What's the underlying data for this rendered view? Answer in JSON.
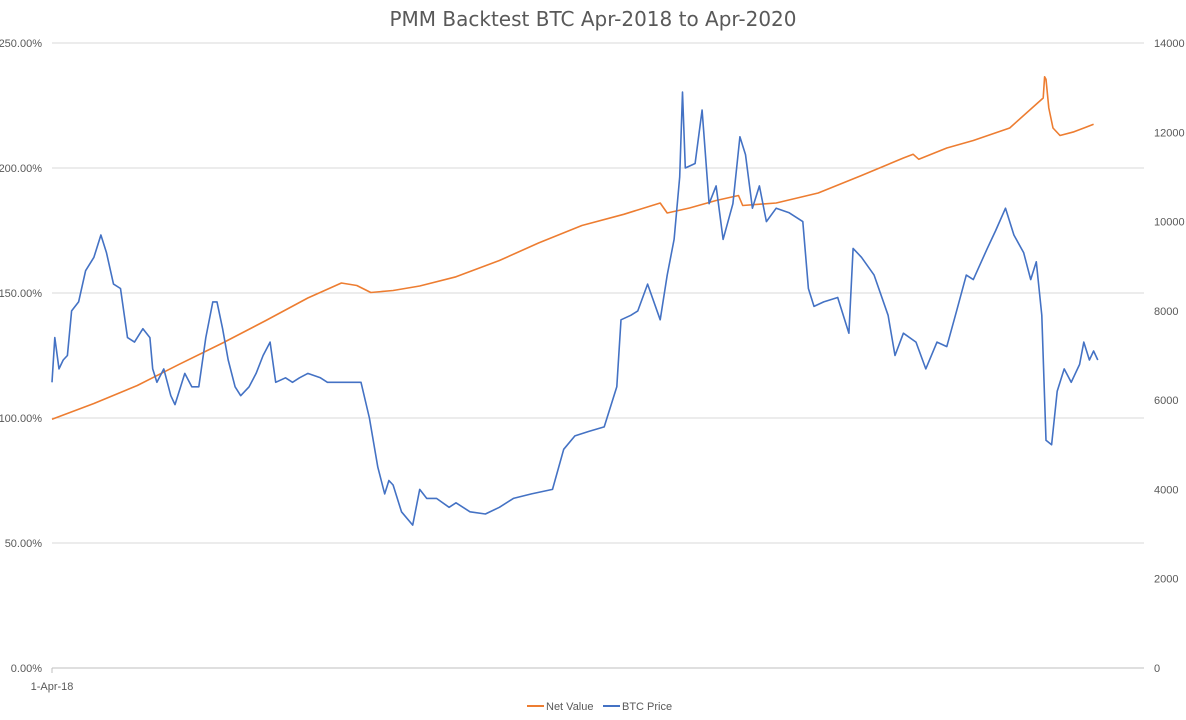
{
  "chart_data": {
    "type": "line",
    "title": "PMM Backtest BTC Apr-2018 to Apr-2020",
    "x_tick_labels": [
      "1-Apr-18"
    ],
    "x_range": [
      "2018-04-01",
      "2020-04-01"
    ],
    "y_left": {
      "ticks": [
        "0.00%",
        "50.00%",
        "100.00%",
        "150.00%",
        "200.00%",
        "250.00%"
      ],
      "range": [
        0,
        250
      ]
    },
    "y_right": {
      "ticks": [
        "0",
        "2000",
        "4000",
        "6000",
        "8000",
        "10000",
        "12000",
        "14000"
      ],
      "range": [
        0,
        14000
      ]
    },
    "grid": true,
    "legend_position": "bottom",
    "series": [
      {
        "name": "Net Value",
        "axis": "left",
        "color": "#ED7D31",
        "points": [
          [
            "2018-04-01",
            99.5
          ],
          [
            "2018-05-01",
            105.8
          ],
          [
            "2018-06-01",
            113.0
          ],
          [
            "2018-07-01",
            121.5
          ],
          [
            "2018-08-01",
            130.0
          ],
          [
            "2018-09-01",
            139.0
          ],
          [
            "2018-10-01",
            148.0
          ],
          [
            "2018-10-25",
            154.0
          ],
          [
            "2018-11-05",
            153.0
          ],
          [
            "2018-11-15",
            150.2
          ],
          [
            "2018-12-01",
            151.0
          ],
          [
            "2018-12-20",
            152.8
          ],
          [
            "2019-01-15",
            156.5
          ],
          [
            "2019-02-15",
            163.0
          ],
          [
            "2019-03-15",
            170.0
          ],
          [
            "2019-04-15",
            177.0
          ],
          [
            "2019-05-15",
            181.5
          ],
          [
            "2019-06-10",
            186.0
          ],
          [
            "2019-06-15",
            182.0
          ],
          [
            "2019-07-01",
            184.0
          ],
          [
            "2019-07-20",
            187.0
          ],
          [
            "2019-08-05",
            189.0
          ],
          [
            "2019-08-08",
            185.0
          ],
          [
            "2019-09-01",
            186.0
          ],
          [
            "2019-10-01",
            190.0
          ],
          [
            "2019-11-01",
            197.0
          ],
          [
            "2019-12-01",
            204.0
          ],
          [
            "2019-12-08",
            205.5
          ],
          [
            "2019-12-12",
            203.5
          ],
          [
            "2020-01-01",
            208.0
          ],
          [
            "2020-01-20",
            211.0
          ],
          [
            "2020-02-15",
            216.0
          ],
          [
            "2020-03-10",
            228.0
          ],
          [
            "2020-03-11",
            236.5
          ],
          [
            "2020-03-12",
            235.5
          ],
          [
            "2020-03-14",
            224.0
          ],
          [
            "2020-03-17",
            216.0
          ],
          [
            "2020-03-22",
            213.0
          ],
          [
            "2020-04-01",
            214.5
          ],
          [
            "2020-04-15",
            217.5
          ]
        ]
      },
      {
        "name": "BTC Price",
        "axis": "right",
        "color": "#4472C4",
        "points": [
          [
            "2018-04-01",
            6400
          ],
          [
            "2018-04-03",
            7400
          ],
          [
            "2018-04-06",
            6700
          ],
          [
            "2018-04-09",
            6900
          ],
          [
            "2018-04-12",
            7000
          ],
          [
            "2018-04-15",
            8000
          ],
          [
            "2018-04-20",
            8200
          ],
          [
            "2018-04-25",
            8900
          ],
          [
            "2018-05-01",
            9200
          ],
          [
            "2018-05-06",
            9700
          ],
          [
            "2018-05-10",
            9300
          ],
          [
            "2018-05-15",
            8600
          ],
          [
            "2018-05-20",
            8500
          ],
          [
            "2018-05-25",
            7400
          ],
          [
            "2018-05-30",
            7300
          ],
          [
            "2018-06-05",
            7600
          ],
          [
            "2018-06-10",
            7400
          ],
          [
            "2018-06-12",
            6700
          ],
          [
            "2018-06-15",
            6400
          ],
          [
            "2018-06-20",
            6700
          ],
          [
            "2018-06-25",
            6100
          ],
          [
            "2018-06-28",
            5900
          ],
          [
            "2018-07-05",
            6600
          ],
          [
            "2018-07-10",
            6300
          ],
          [
            "2018-07-15",
            6300
          ],
          [
            "2018-07-20",
            7400
          ],
          [
            "2018-07-25",
            8200
          ],
          [
            "2018-07-28",
            8200
          ],
          [
            "2018-08-01",
            7600
          ],
          [
            "2018-08-05",
            6900
          ],
          [
            "2018-08-10",
            6300
          ],
          [
            "2018-08-14",
            6100
          ],
          [
            "2018-08-20",
            6300
          ],
          [
            "2018-08-25",
            6600
          ],
          [
            "2018-08-30",
            7000
          ],
          [
            "2018-09-04",
            7300
          ],
          [
            "2018-09-08",
            6400
          ],
          [
            "2018-09-15",
            6500
          ],
          [
            "2018-09-20",
            6400
          ],
          [
            "2018-09-25",
            6500
          ],
          [
            "2018-10-01",
            6600
          ],
          [
            "2018-10-10",
            6500
          ],
          [
            "2018-10-15",
            6400
          ],
          [
            "2018-10-20",
            6400
          ],
          [
            "2018-10-25",
            6400
          ],
          [
            "2018-11-01",
            6400
          ],
          [
            "2018-11-08",
            6400
          ],
          [
            "2018-11-14",
            5600
          ],
          [
            "2018-11-20",
            4500
          ],
          [
            "2018-11-25",
            3900
          ],
          [
            "2018-11-28",
            4200
          ],
          [
            "2018-12-01",
            4100
          ],
          [
            "2018-12-07",
            3500
          ],
          [
            "2018-12-15",
            3200
          ],
          [
            "2018-12-20",
            4000
          ],
          [
            "2018-12-25",
            3800
          ],
          [
            "2019-01-01",
            3800
          ],
          [
            "2019-01-10",
            3600
          ],
          [
            "2019-01-15",
            3700
          ],
          [
            "2019-01-25",
            3500
          ],
          [
            "2019-02-05",
            3450
          ],
          [
            "2019-02-15",
            3600
          ],
          [
            "2019-02-25",
            3800
          ],
          [
            "2019-03-10",
            3900
          ],
          [
            "2019-03-25",
            4000
          ],
          [
            "2019-04-02",
            4900
          ],
          [
            "2019-04-10",
            5200
          ],
          [
            "2019-04-20",
            5300
          ],
          [
            "2019-05-01",
            5400
          ],
          [
            "2019-05-10",
            6300
          ],
          [
            "2019-05-13",
            7800
          ],
          [
            "2019-05-20",
            7900
          ],
          [
            "2019-05-25",
            8000
          ],
          [
            "2019-06-01",
            8600
          ],
          [
            "2019-06-10",
            7800
          ],
          [
            "2019-06-15",
            8800
          ],
          [
            "2019-06-20",
            9600
          ],
          [
            "2019-06-24",
            11000
          ],
          [
            "2019-06-26",
            12900
          ],
          [
            "2019-06-28",
            11200
          ],
          [
            "2019-07-05",
            11300
          ],
          [
            "2019-07-10",
            12500
          ],
          [
            "2019-07-15",
            10400
          ],
          [
            "2019-07-20",
            10800
          ],
          [
            "2019-07-25",
            9600
          ],
          [
            "2019-08-01",
            10400
          ],
          [
            "2019-08-06",
            11900
          ],
          [
            "2019-08-10",
            11500
          ],
          [
            "2019-08-15",
            10300
          ],
          [
            "2019-08-20",
            10800
          ],
          [
            "2019-08-25",
            10000
          ],
          [
            "2019-09-01",
            10300
          ],
          [
            "2019-09-10",
            10200
          ],
          [
            "2019-09-20",
            10000
          ],
          [
            "2019-09-24",
            8500
          ],
          [
            "2019-09-28",
            8100
          ],
          [
            "2019-10-05",
            8200
          ],
          [
            "2019-10-15",
            8300
          ],
          [
            "2019-10-23",
            7500
          ],
          [
            "2019-10-26",
            9400
          ],
          [
            "2019-11-01",
            9200
          ],
          [
            "2019-11-10",
            8800
          ],
          [
            "2019-11-20",
            7900
          ],
          [
            "2019-11-25",
            7000
          ],
          [
            "2019-12-01",
            7500
          ],
          [
            "2019-12-10",
            7300
          ],
          [
            "2019-12-17",
            6700
          ],
          [
            "2019-12-25",
            7300
          ],
          [
            "2020-01-01",
            7200
          ],
          [
            "2020-01-08",
            8000
          ],
          [
            "2020-01-15",
            8800
          ],
          [
            "2020-01-20",
            8700
          ],
          [
            "2020-01-30",
            9400
          ],
          [
            "2020-02-05",
            9800
          ],
          [
            "2020-02-12",
            10300
          ],
          [
            "2020-02-18",
            9700
          ],
          [
            "2020-02-25",
            9300
          ],
          [
            "2020-03-01",
            8700
          ],
          [
            "2020-03-05",
            9100
          ],
          [
            "2020-03-09",
            7900
          ],
          [
            "2020-03-12",
            5100
          ],
          [
            "2020-03-16",
            5000
          ],
          [
            "2020-03-20",
            6200
          ],
          [
            "2020-03-25",
            6700
          ],
          [
            "2020-03-30",
            6400
          ],
          [
            "2020-04-05",
            6800
          ],
          [
            "2020-04-08",
            7300
          ],
          [
            "2020-04-12",
            6900
          ],
          [
            "2020-04-15",
            7100
          ],
          [
            "2020-04-18",
            6900
          ]
        ]
      }
    ]
  }
}
